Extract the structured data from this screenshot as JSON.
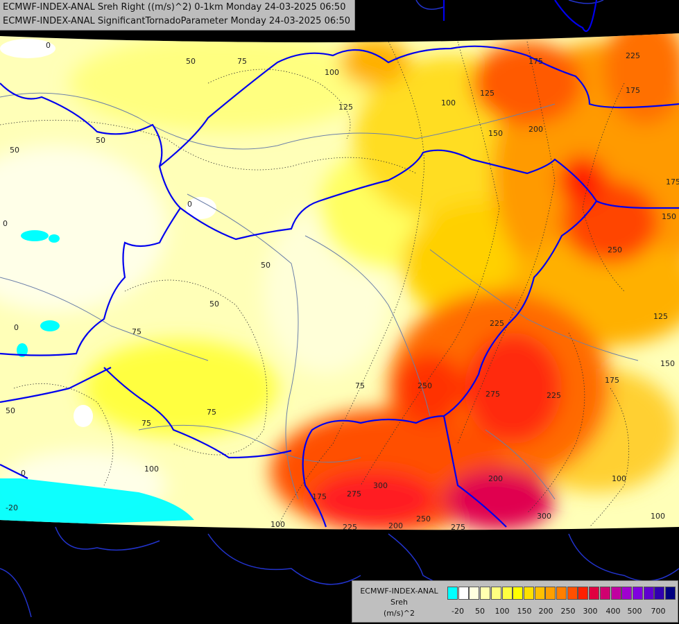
{
  "title": {
    "line1": "ECMWF-INDEX-ANAL Sreh Right ((m/s)^2) 0-1km Monday 24-03-2025 06:50",
    "line2": "ECMWF-INDEX-ANAL SignificantTornadoParameter Monday 24-03-2025 06:50"
  },
  "legend": {
    "model": "ECMWF-INDEX-ANAL",
    "variable": "Sreh",
    "unit": "(m/s)^2",
    "colors": [
      "#00ffff",
      "#ffffff",
      "#ffffe0",
      "#ffffb0",
      "#ffff80",
      "#ffff40",
      "#ffff00",
      "#ffe000",
      "#ffc000",
      "#ff9f00",
      "#ff7f00",
      "#ff5000",
      "#ff2000",
      "#e00040",
      "#d00070",
      "#c000a0",
      "#a000d0",
      "#8000e0",
      "#6000d0",
      "#3000b0",
      "#000080"
    ],
    "ticks": [
      "-20",
      "50",
      "100",
      "150",
      "200",
      "250",
      "300",
      "400",
      "500",
      "700"
    ]
  },
  "contour_labels": [
    "0",
    "50",
    "75",
    "100",
    "125",
    "150",
    "175",
    "200",
    "225",
    "250",
    "275",
    "300",
    "-20"
  ],
  "colors": {
    "background": "#000000",
    "border": "#0000ff",
    "rivers": "#6b7fa8",
    "title_bg": "#bdbdbd"
  }
}
